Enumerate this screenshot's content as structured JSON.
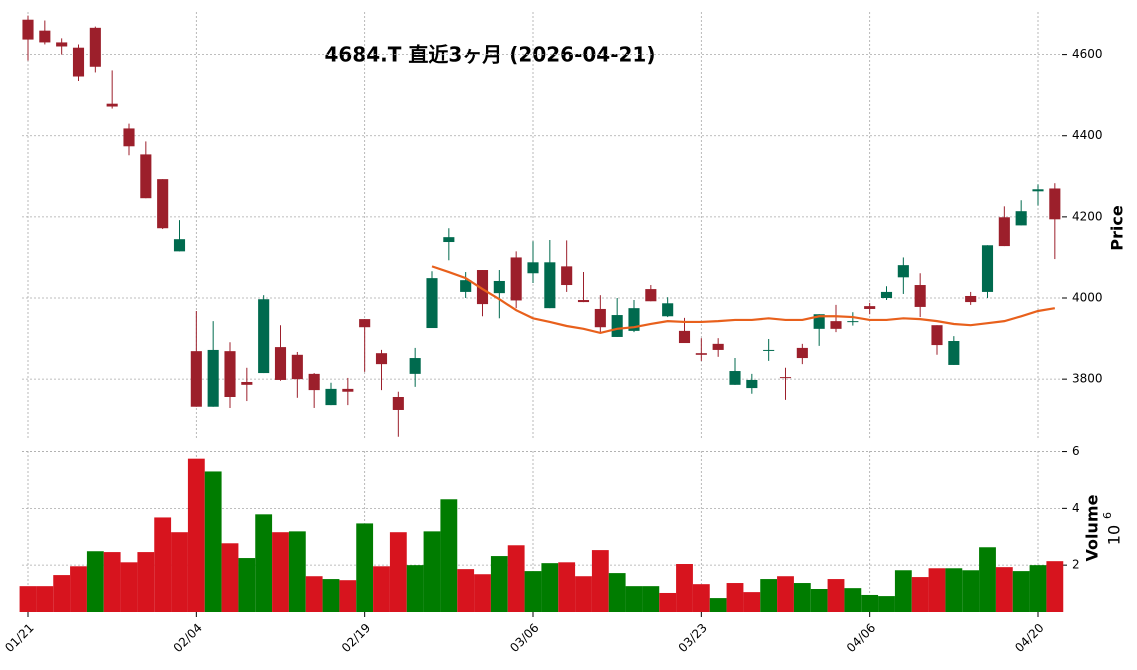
{
  "chart_data": {
    "type": "candlestick",
    "title": "4684.T  直近3ヶ月  (2026-04-21)",
    "ylabel": "Price",
    "volume_label": "Volume",
    "volume_scale": {
      "base": "10",
      "exponent": "6"
    },
    "categories": [
      "01/21",
      null,
      null,
      null,
      null,
      null,
      null,
      null,
      null,
      null,
      "02/04",
      null,
      null,
      null,
      null,
      null,
      null,
      null,
      null,
      null,
      "02/19",
      null,
      null,
      null,
      null,
      null,
      null,
      null,
      null,
      null,
      "03/06",
      null,
      null,
      null,
      null,
      null,
      null,
      null,
      null,
      null,
      "03/23",
      null,
      null,
      null,
      null,
      null,
      null,
      null,
      null,
      null,
      "04/06",
      null,
      null,
      null,
      null,
      null,
      null,
      null,
      null,
      null,
      "04/20",
      null
    ],
    "open": [
      4686,
      4659,
      4630,
      4617,
      4666,
      4479,
      4418,
      4354,
      4293,
      4115,
      3869,
      3732,
      3869,
      3793,
      3815,
      3879,
      3860,
      3813,
      3736,
      3776,
      3948,
      3864,
      3756,
      3813,
      3926,
      4138,
      4015,
      4069,
      4012,
      4100,
      4061,
      3975,
      4078,
      3995,
      3973,
      3904,
      3919,
      4022,
      3955,
      3919,
      3864,
      3887,
      3786,
      3778,
      3870,
      3805,
      3877,
      3924,
      3943,
      3941,
      3980,
      4000,
      4051,
      4032,
      3933,
      3835,
      4005,
      4015,
      4199,
      4179,
      4263,
      4270
    ],
    "high": [
      4696,
      4684,
      4640,
      4625,
      4669,
      4561,
      4430,
      4386,
      4293,
      4192,
      3968,
      3943,
      3891,
      3828,
      4007,
      3933,
      3867,
      3815,
      3791,
      3803,
      3948,
      3872,
      3769,
      3877,
      4066,
      4172,
      4064,
      4069,
      4069,
      4115,
      4140,
      4143,
      4142,
      4064,
      4007,
      4000,
      3995,
      4032,
      4002,
      3951,
      3901,
      3901,
      3852,
      3813,
      3899,
      3828,
      3887,
      3960,
      3983,
      3965,
      3988,
      4029,
      4100,
      4061,
      3933,
      3906,
      4015,
      4130,
      4226,
      4241,
      4280,
      4283
    ],
    "low": [
      4585,
      4625,
      4600,
      4535,
      4556,
      4467,
      4352,
      4246,
      4170,
      4115,
      3732,
      3732,
      3729,
      3746,
      3815,
      3796,
      3754,
      3729,
      3736,
      3736,
      3818,
      3773,
      3658,
      3781,
      3926,
      4093,
      4000,
      3955,
      3950,
      3975,
      4037,
      3975,
      4015,
      3990,
      3914,
      3904,
      3916,
      3992,
      3953,
      3889,
      3845,
      3855,
      3786,
      3764,
      3845,
      3749,
      3837,
      3882,
      3916,
      3932,
      3960,
      3995,
      4010,
      3953,
      3860,
      3835,
      3983,
      4000,
      4128,
      4179,
      4228,
      4096
    ],
    "close": [
      4637,
      4630,
      4620,
      4546,
      4570,
      4472,
      4374,
      4246,
      4172,
      4145,
      3732,
      3872,
      3756,
      3786,
      3997,
      3798,
      3800,
      3773,
      3776,
      3769,
      3928,
      3837,
      3724,
      3852,
      4049,
      4150,
      4044,
      3985,
      4042,
      3994,
      4088,
      4088,
      4032,
      3990,
      3928,
      3958,
      3975,
      3992,
      3987,
      3889,
      3860,
      3872,
      3820,
      3798,
      3872,
      3803,
      3852,
      3960,
      3924,
      3943,
      3973,
      4015,
      4081,
      3978,
      3884,
      3894,
      3990,
      4130,
      4128,
      4214,
      4268,
      4194
    ],
    "volume": [
      1.26,
      1.26,
      1.65,
      1.96,
      2.49,
      2.46,
      2.1,
      2.46,
      3.68,
      3.16,
      5.75,
      5.3,
      2.77,
      2.25,
      3.79,
      3.16,
      3.19,
      1.61,
      1.51,
      1.47,
      3.47,
      1.96,
      3.16,
      2.0,
      3.19,
      4.32,
      1.86,
      1.68,
      2.32,
      2.7,
      1.79,
      2.07,
      2.1,
      1.61,
      2.53,
      1.72,
      1.26,
      1.26,
      1.02,
      2.04,
      1.33,
      0.84,
      1.37,
      1.05,
      1.51,
      1.61,
      1.37,
      1.16,
      1.51,
      1.19,
      0.95,
      0.91,
      1.82,
      1.58,
      1.89,
      1.89,
      1.82,
      2.63,
      1.93,
      1.79,
      2.0,
      2.14
    ],
    "moving_average": {
      "color": "#e8601c",
      "values": [
        null,
        null,
        null,
        null,
        null,
        null,
        null,
        null,
        null,
        null,
        null,
        null,
        null,
        null,
        null,
        null,
        null,
        null,
        null,
        null,
        null,
        null,
        null,
        null,
        4078,
        4064,
        4049,
        4022,
        3997,
        3970,
        3950,
        3941,
        3931,
        3924,
        3914,
        3924,
        3928,
        3936,
        3943,
        3941,
        3941,
        3943,
        3946,
        3946,
        3950,
        3946,
        3946,
        3955,
        3955,
        3953,
        3946,
        3946,
        3950,
        3948,
        3943,
        3936,
        3933,
        3938,
        3943,
        3955,
        3968,
        3975
      ]
    },
    "up_color": "#006a4e",
    "down_color": "#9c1f2b",
    "volume_up_color": "#007c00",
    "volume_down_color": "#d7141e",
    "ylim": [
      3650,
      4705
    ],
    "yticks": [
      3800,
      4000,
      4200,
      4400,
      4600
    ],
    "volume_ylim": [
      0.35,
      6.02
    ],
    "volume_yticks": [
      2,
      4,
      6
    ],
    "grid": true
  }
}
